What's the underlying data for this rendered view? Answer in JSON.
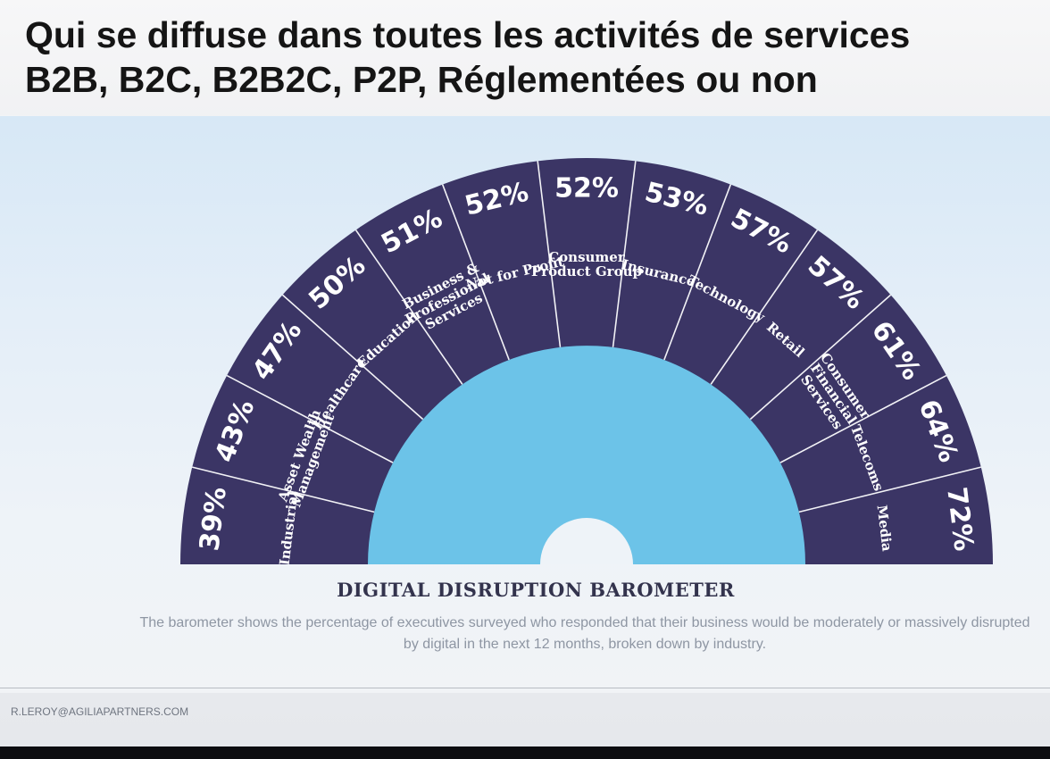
{
  "slide": {
    "title_line1": "Qui se diffuse dans toutes les activités de services",
    "title_line2": "B2B, B2C, B2B2C, P2P, Réglementées ou non",
    "footer": "R.LEROY@AGILIAPARTNERS.COM"
  },
  "colors": {
    "segment": "#3b3565",
    "divider": "#f2f2f6",
    "inner_fill": "#6cc3e8",
    "label": "#ffffff"
  },
  "chart_data": {
    "type": "gauge",
    "title": "DIGITAL DISRUPTION BAROMETER",
    "caption": "The barometer shows the percentage of executives surveyed who responded that their business would be moderately or massively disrupted by digital in the next 12 months, broken down by industry.",
    "unit": "%",
    "segments": [
      {
        "label": "Industrial",
        "value": 39,
        "value_label": "39%"
      },
      {
        "label": "Asset Wealth Management",
        "label_lines": [
          "Asset Wealth",
          "Management"
        ],
        "value": 43,
        "value_label": "43%"
      },
      {
        "label": "Healthcare",
        "value": 47,
        "value_label": "47%"
      },
      {
        "label": "Education",
        "value": 50,
        "value_label": "50%"
      },
      {
        "label": "Business & Professional Services",
        "label_lines": [
          "Business &",
          "Professional",
          "Services"
        ],
        "value": 51,
        "value_label": "51%"
      },
      {
        "label": "Not for Profit",
        "value": 52,
        "value_label": "52%"
      },
      {
        "label": "Consumer Product Group",
        "label_lines": [
          "Consumer",
          "Product Group"
        ],
        "value": 52,
        "value_label": "52%"
      },
      {
        "label": "Insurance",
        "value": 53,
        "value_label": "53%"
      },
      {
        "label": "Technology",
        "value": 57,
        "value_label": "57%"
      },
      {
        "label": "Retail",
        "value": 57,
        "value_label": "57%"
      },
      {
        "label": "Consumer Financial Services",
        "label_lines": [
          "Consumer",
          "Financial",
          "Services"
        ],
        "value": 61,
        "value_label": "61%"
      },
      {
        "label": "Telecoms",
        "value": 64,
        "value_label": "64%"
      },
      {
        "label": "Media",
        "value": 72,
        "value_label": "72%"
      }
    ]
  }
}
